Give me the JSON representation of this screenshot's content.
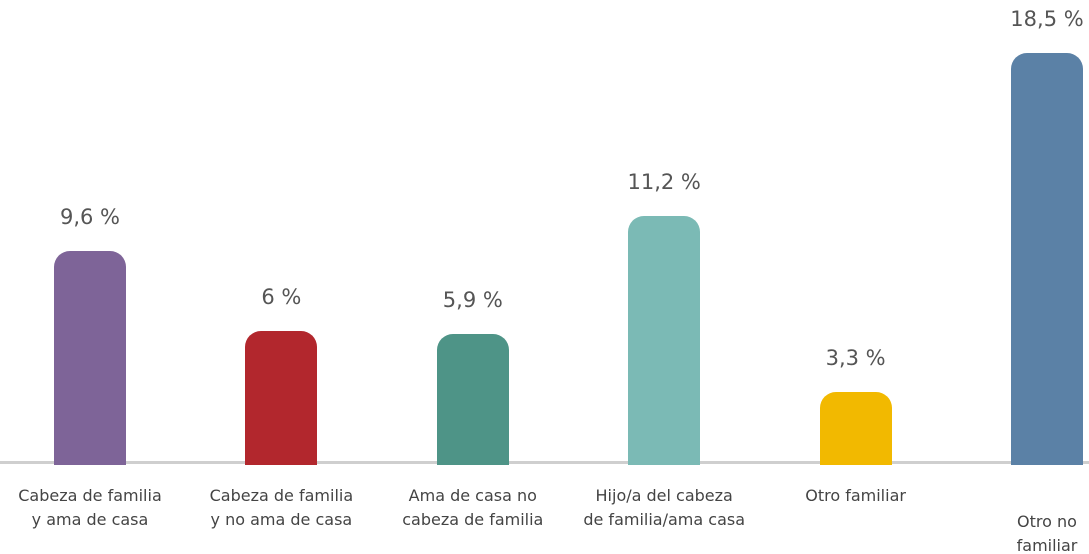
{
  "chart_data": {
    "type": "bar",
    "categories": [
      "Cabeza de familia\ny ama de casa",
      "Cabeza de familia\ny no ama de casa",
      "Ama de casa no\ncabeza de familia",
      "Hijo/a del cabeza\nde familia/ama casa",
      "Otro familiar",
      "Otro no\nfamiliar"
    ],
    "values": [
      9.6,
      6,
      5.9,
      11.2,
      3.3,
      18.5
    ],
    "value_labels": [
      "9,6 %",
      "6 %",
      "5,9 %",
      "11,2 %",
      "3,3 %",
      "18,5 %"
    ],
    "colors": [
      "#7e6498",
      "#b2272d",
      "#4e9487",
      "#7bbab5",
      "#f2b900",
      "#5b81a6"
    ]
  }
}
